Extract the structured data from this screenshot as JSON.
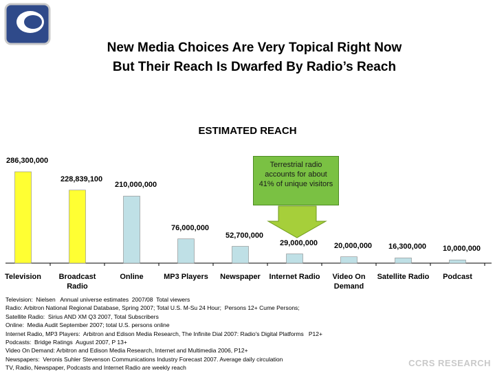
{
  "header": {
    "title_lines": [
      "New Media Choices Are Very Topical Right Now",
      "But Their Reach Is Dwarfed By Radio’s Reach"
    ]
  },
  "chart_data": {
    "type": "bar",
    "title": "ESTIMATED REACH",
    "categories": [
      "Television",
      "Broadcast Radio",
      "Online",
      "MP3 Players",
      "Newspaper",
      "Internet Radio",
      "Video On Demand",
      "Satellite Radio",
      "Podcast"
    ],
    "values": [
      286300000,
      228839100,
      210000000,
      76000000,
      52700000,
      29000000,
      20000000,
      16300000,
      10000000
    ],
    "value_labels": [
      "286,300,000",
      "228,839,100",
      "210,000,000",
      "76,000,000",
      "52,700,000",
      "29,000,000",
      "20,000,000",
      "16,300,000",
      "10,000,000"
    ],
    "colors": [
      "#ffff33",
      "#ffff33",
      "#bfe0e6",
      "#bfe0e6",
      "#bfe0e6",
      "#bfe0e6",
      "#bfe0e6",
      "#bfe0e6",
      "#bfe0e6"
    ],
    "grid": false,
    "annotation": "Terrestrial radio accounts for about 41% of unique visitors"
  },
  "footnotes": [
    "Television:  Nielsen   Annual universe estimates  2007/08  Total viewers",
    "Radio: Arbitron National Regional Database, Spring 2007; Total U.S. M-Su 24 Hour;  Persons 12+ Cume Persons;",
    "Satellite Radio:  Sirius AND XM Q3 2007, Total Subscribers",
    "Online:  Media Audit September 2007; total U.S. persons online",
    "Internet Radio, MP3 Players:  Arbitron and Edison Media Research, The Infinite Dial 2007: Radio's Digital Platforms   P12+",
    "Podcasts:  Bridge Ratings  August 2007, P 13+",
    "Video On Demand: Arbitron and Edison Media Research, Internet and Multimedia 2006, P12+",
    "Newspapers:  Veronis Suhler Stevenson Communications Industry Forecast 2007. Average daily circulation",
    "TV, Radio, Newspaper, Podcasts and Internet Radio are weekly reach"
  ],
  "brand": "CCRS RESEARCH"
}
